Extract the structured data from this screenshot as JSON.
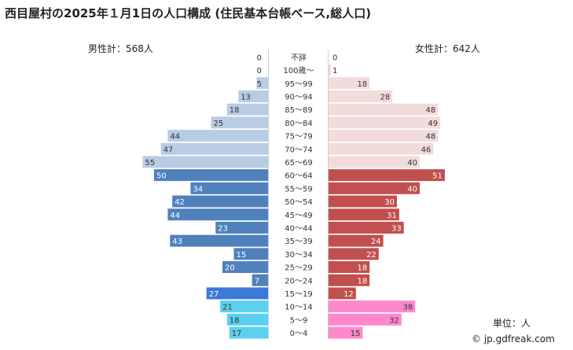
{
  "title": "西目屋村の2025年１月1日の人口構成 (住民基本台帳ベース,総人口)",
  "male_total_label": "男性計：568人",
  "female_total_label": "女性計：642人",
  "unit_label": "単位：人",
  "credit": "© jp.gdfreak.com",
  "chart_data": {
    "type": "bar",
    "orientation": "horizontal-pyramid",
    "categories": [
      "不詳",
      "100歳～",
      "95～99",
      "90～94",
      "85～89",
      "80～84",
      "75～79",
      "70～74",
      "65～69",
      "60～64",
      "55～59",
      "50～54",
      "45～49",
      "40～44",
      "35～39",
      "30～34",
      "25～29",
      "20～24",
      "15～19",
      "10～14",
      "5～9",
      "0～4"
    ],
    "series": [
      {
        "name": "男性",
        "values": [
          0,
          0,
          5,
          13,
          18,
          25,
          44,
          47,
          55,
          50,
          34,
          42,
          44,
          23,
          43,
          15,
          20,
          7,
          27,
          21,
          18,
          17
        ]
      },
      {
        "name": "女性",
        "values": [
          0,
          1,
          18,
          28,
          48,
          49,
          48,
          46,
          40,
          51,
          40,
          30,
          31,
          33,
          24,
          22,
          18,
          18,
          12,
          38,
          32,
          15
        ]
      }
    ],
    "colors": {
      "male_elderly": "#b8cce4",
      "male_working": "#4f81bd",
      "male_young_adult": "#3b78d8",
      "male_child": "#5bd0f0",
      "female_elderly": "#f2dcdb",
      "female_working": "#c0504d",
      "female_child": "#ff88cc"
    }
  }
}
